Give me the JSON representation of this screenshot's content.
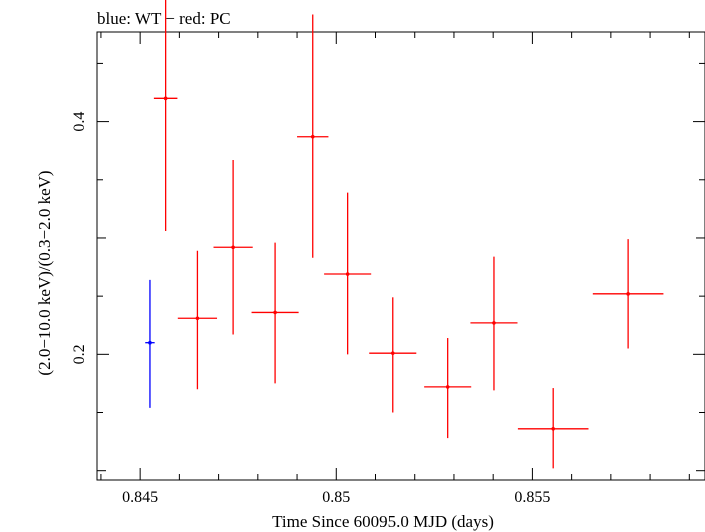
{
  "chart_data": {
    "type": "scatter",
    "title": "blue: WT − red: PC",
    "xlabel": "Time Since 60095.0 MJD (days)",
    "ylabel": "(2.0−10.0 keV)/(0.3−2.0 keV)",
    "xlim": [
      0.8439,
      0.8594
    ],
    "ylim": [
      0.092,
      0.477
    ],
    "xticks": [
      {
        "value": 0.845,
        "label": "0.845"
      },
      {
        "value": 0.85,
        "label": "0.85"
      },
      {
        "value": 0.855,
        "label": "0.855"
      }
    ],
    "yticks": [
      {
        "value": 0.2,
        "label": "0.2"
      },
      {
        "value": 0.4,
        "label": "0.4"
      }
    ],
    "grid": false,
    "series": [
      {
        "name": "WT",
        "color": "#0000ff",
        "points": [
          {
            "x": 0.84525,
            "xerr": 0.00012,
            "y": 0.21,
            "ylo": 0.154,
            "yhi": 0.264
          }
        ]
      },
      {
        "name": "PC",
        "color": "#ff0000",
        "points": [
          {
            "x": 0.84565,
            "xerr": 0.0003,
            "y": 0.42,
            "ylo": 0.306,
            "yhi": 0.532
          },
          {
            "x": 0.84646,
            "xerr": 0.0005,
            "y": 0.231,
            "ylo": 0.17,
            "yhi": 0.289
          },
          {
            "x": 0.84737,
            "xerr": 0.0005,
            "y": 0.292,
            "ylo": 0.217,
            "yhi": 0.367
          },
          {
            "x": 0.84844,
            "xerr": 0.0006,
            "y": 0.236,
            "ylo": 0.175,
            "yhi": 0.296
          },
          {
            "x": 0.8494,
            "xerr": 0.0004,
            "y": 0.387,
            "ylo": 0.283,
            "yhi": 0.492
          },
          {
            "x": 0.85029,
            "xerr": 0.0006,
            "y": 0.269,
            "ylo": 0.2,
            "yhi": 0.339
          },
          {
            "x": 0.85144,
            "xerr": 0.0006,
            "y": 0.201,
            "ylo": 0.15,
            "yhi": 0.249
          },
          {
            "x": 0.85284,
            "xerr": 0.0006,
            "y": 0.172,
            "ylo": 0.128,
            "yhi": 0.214
          },
          {
            "x": 0.85402,
            "xerr": 0.0006,
            "y": 0.227,
            "ylo": 0.169,
            "yhi": 0.284
          },
          {
            "x": 0.85553,
            "xerr": 0.0009,
            "y": 0.136,
            "ylo": 0.102,
            "yhi": 0.171
          },
          {
            "x": 0.85744,
            "xerr": 0.0009,
            "y": 0.252,
            "ylo": 0.205,
            "yhi": 0.299
          }
        ]
      }
    ]
  }
}
